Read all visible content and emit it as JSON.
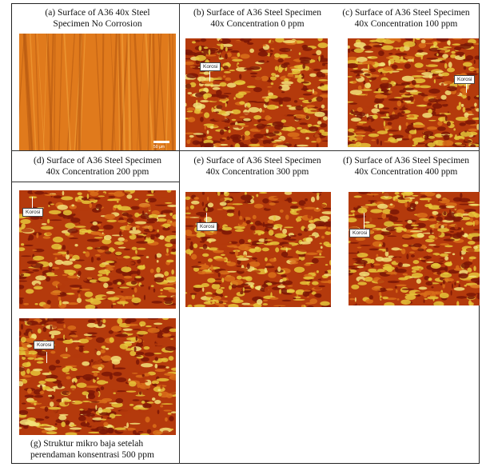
{
  "panels": [
    {
      "id": "a",
      "caption": "(a)     Surface of A36 40x Steel\nSpecimen No Corrosion",
      "marker_label": "",
      "scale_label": "50 µm",
      "style": "clean"
    },
    {
      "id": "b",
      "caption": "(b) Surface of A36 Steel Specimen\n40x Concentration 0 ppm",
      "marker_label": "Korosi",
      "scale_label": "",
      "style": "corroded"
    },
    {
      "id": "c",
      "caption": "(c) Surface of A36 Steel Specimen\n40x Concentration 100 ppm",
      "marker_label": "Korosi",
      "scale_label": "",
      "style": "corroded"
    },
    {
      "id": "d",
      "caption": "(d) Surface of A36 Steel Specimen\n40x Concentration 200 ppm",
      "marker_label": "Korosi",
      "scale_label": "",
      "style": "corroded"
    },
    {
      "id": "e",
      "caption": "(e) Surface of A36 Steel Specimen\n40x Concentration 300 ppm",
      "marker_label": "Korosi",
      "scale_label": "",
      "style": "corroded"
    },
    {
      "id": "f",
      "caption": "(f)  Surface of A36 Steel Specimen\n40x Concentration 400 ppm",
      "marker_label": "Korosi",
      "scale_label": "",
      "style": "corroded"
    },
    {
      "id": "g",
      "caption": "(g) Struktur mikro baja setelah\nperendaman konsentrasi 500 ppm",
      "marker_label": "Korosi",
      "scale_label": "",
      "style": "corroded"
    }
  ],
  "colors": {
    "clean_base": "#e07a1c",
    "clean_streak": "#f3a23a",
    "rust_dark": "#7a1606",
    "rust_mid": "#b43a0c",
    "rust_orange": "#d9701a",
    "rust_yellow": "#e6c63a",
    "rust_pale": "#f2e27a"
  }
}
